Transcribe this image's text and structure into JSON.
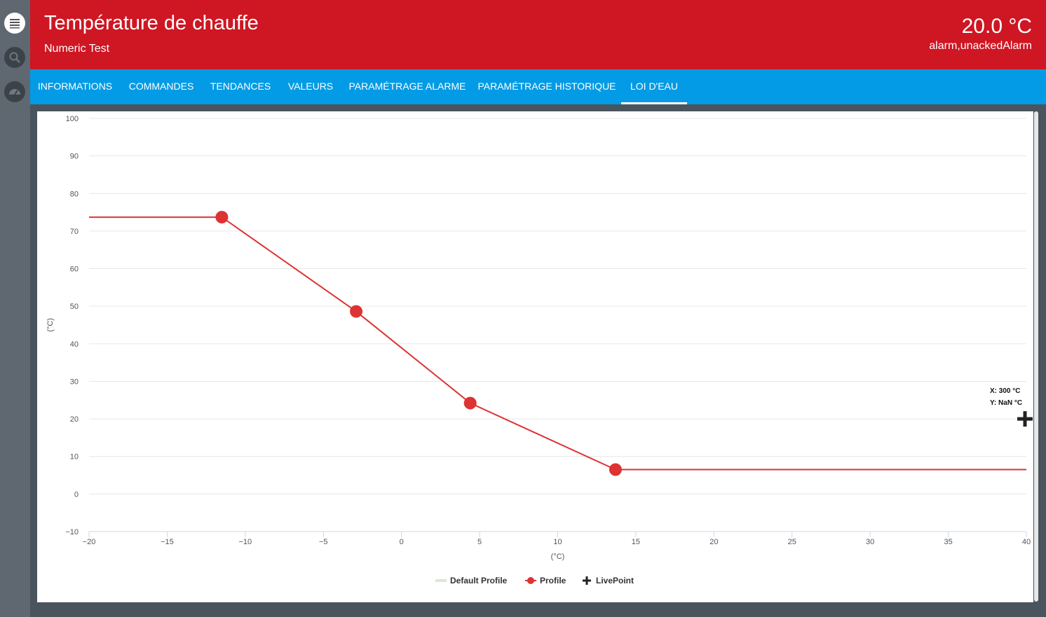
{
  "sidebar": {
    "items": [
      {
        "icon": "menu-icon"
      },
      {
        "icon": "search-icon"
      },
      {
        "icon": "dashboard-icon"
      }
    ]
  },
  "header": {
    "title": "Température de chauffe",
    "subtitle": "Numeric Test",
    "value": "20.0 °C",
    "status": "alarm,unackedAlarm",
    "color": "#cf1623"
  },
  "tabs": {
    "color": "#039be5",
    "items": [
      {
        "label": "INFORMATIONS"
      },
      {
        "label": "COMMANDES"
      },
      {
        "label": "TENDANCES"
      },
      {
        "label": "VALEURS"
      },
      {
        "label": "PARAMÉTRAGE ALARME"
      },
      {
        "label": "PARAMÉTRAGE HISTORIQUE"
      },
      {
        "label": "LOI D'EAU",
        "active": true
      }
    ]
  },
  "chart_data": {
    "type": "line",
    "xlabel": "(°C)",
    "ylabel": "(°C)",
    "xlim": [
      -20,
      40
    ],
    "ylim": [
      -10,
      100
    ],
    "xticks": [
      "−20",
      "−15",
      "−10",
      "−5",
      "0",
      "5",
      "10",
      "15",
      "20",
      "25",
      "30",
      "35",
      "40"
    ],
    "yticks": [
      "−10",
      "0",
      "10",
      "20",
      "30",
      "40",
      "50",
      "60",
      "70",
      "80",
      "90",
      "100"
    ],
    "grid": true,
    "legend_position": "bottom",
    "series": [
      {
        "name": "Default Profile",
        "color": "#d9ead3",
        "x": [],
        "y": []
      },
      {
        "name": "Profile",
        "color": "#dd3333",
        "x": [
          -20,
          -11.5,
          -2.9,
          4.4,
          13.7,
          40
        ],
        "y": [
          73.7,
          73.7,
          48.6,
          24.2,
          6.5,
          6.5
        ],
        "markers": [
          -11.5,
          -2.9,
          4.4,
          13.7
        ]
      },
      {
        "name": "LivePoint",
        "color": "#222222",
        "x": [
          40
        ],
        "y": [
          20
        ]
      }
    ],
    "tooltip": {
      "x": "X: 300 °C",
      "y": "Y: NaN °C"
    }
  }
}
